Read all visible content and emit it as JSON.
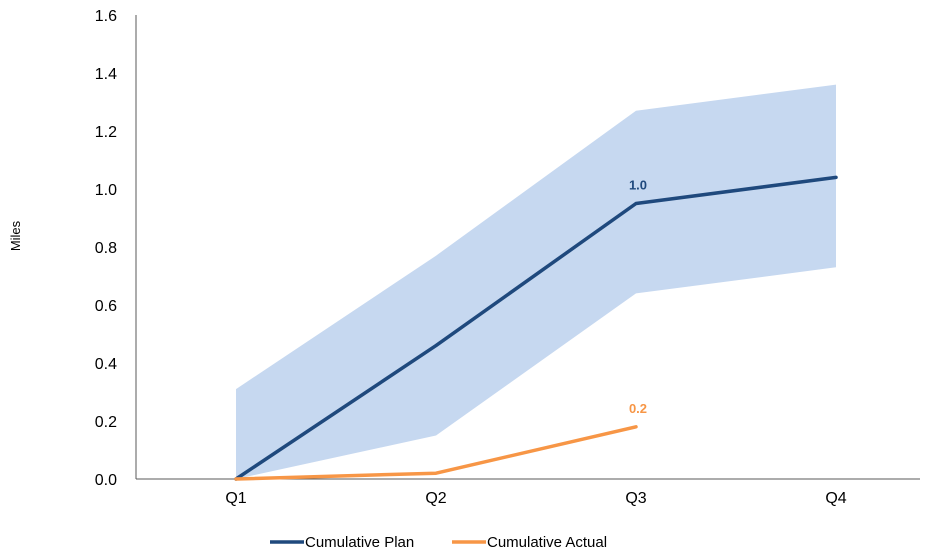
{
  "chart_data": {
    "type": "line",
    "categories": [
      "Q1",
      "Q2",
      "Q3",
      "Q4"
    ],
    "ylabel": "Miles",
    "xlabel": "",
    "ylim": [
      0,
      1.6
    ],
    "yticks": [
      "0.0",
      "0.2",
      "0.4",
      "0.6",
      "0.8",
      "1.0",
      "1.2",
      "1.4",
      "1.6"
    ],
    "band": {
      "lower": [
        0.0,
        0.15,
        0.64,
        0.73
      ],
      "upper": [
        0.31,
        0.77,
        1.27,
        1.36
      ],
      "color": "#c6d8f0"
    },
    "series": [
      {
        "name": "Cumulative Plan",
        "values": [
          0.0,
          0.46,
          0.95,
          1.04
        ],
        "color": "#1f497d",
        "data_label": {
          "index": 2,
          "text": "1.0"
        }
      },
      {
        "name": "Cumulative Actual",
        "values": [
          0.0,
          0.02,
          0.18,
          null
        ],
        "color": "#f79646",
        "data_label": {
          "index": 2,
          "text": "0.2"
        }
      }
    ],
    "legend_position": "bottom-center",
    "grid": false
  }
}
